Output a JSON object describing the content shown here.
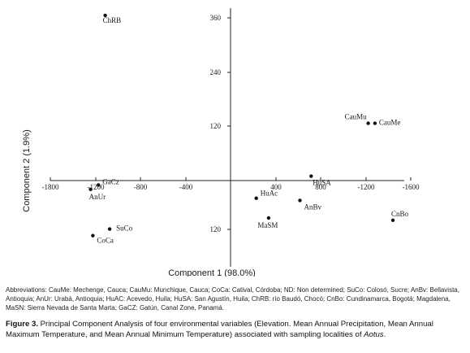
{
  "chart_data": {
    "type": "scatter",
    "xlabel": "Component  1 (98.0%)",
    "ylabel": "Component  2 (1.9%)",
    "x_ticks": [
      "-1800",
      "-1200",
      "-800",
      "-400",
      "400",
      "800",
      "-1200",
      "-1600"
    ],
    "y_ticks_upper": [
      "360",
      "240",
      "120"
    ],
    "y_ticks_lower": [
      "120"
    ],
    "points": [
      {
        "name": "ChRB",
        "x": -1120,
        "y": 375
      },
      {
        "name": "CauMu",
        "x": 1230,
        "y": 130
      },
      {
        "name": "CauMe",
        "x": 1290,
        "y": 130
      },
      {
        "name": "GaCz",
        "x": -1180,
        "y": -10
      },
      {
        "name": "AnUr",
        "x": -1250,
        "y": -20
      },
      {
        "name": "HuSA",
        "x": 720,
        "y": 10
      },
      {
        "name": "HuAc",
        "x": 230,
        "y": -40
      },
      {
        "name": "AnBv",
        "x": 620,
        "y": -45
      },
      {
        "name": "MaSM",
        "x": 340,
        "y": -85
      },
      {
        "name": "CnBo",
        "x": 1450,
        "y": -90
      },
      {
        "name": "SuCo",
        "x": -1080,
        "y": -110
      },
      {
        "name": "CoCa",
        "x": -1230,
        "y": -125
      }
    ]
  },
  "abbreviations": {
    "label": "Abbreviations:",
    "text": "CauMe: Mechenge, Cauca; CauMu: Munchique, Cauca; CoCa: Catival, Córdoba; ND: Non determined; SuCo: Colosó, Sucre; AnBv: Bellavista, Antioquia; AnUr: Urabá, Antioquia;  HuAC: Acevedo, Huila; HuSA: San Agustín, Huila; ChRB: río Baudó, Chocó; CnBo: Cundinamarca, Bogotá; Magdalena, MaSN: Sierra Nevada de Santa Marta; GaCZ: Gatún, Canal Zone, Panamá."
  },
  "caption": {
    "figure_label": "Figure 3.",
    "text": " Principal Component Analysis of four environmental variables (Elevation. Mean Annual Precipitation, Mean Annual Maximum Temperature, and Mean Annual Minimum Temperature) associated with sampling localities of ",
    "genus": "Aotus",
    "end": "."
  }
}
